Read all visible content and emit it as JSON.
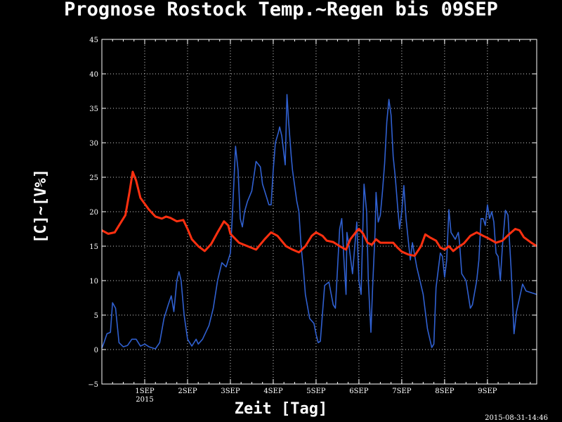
{
  "chart_data": {
    "type": "line",
    "title": "Prognose Rostock Temp.~Regen bis 09SEP",
    "xlabel": "Zeit [Tag]",
    "ylabel": "[C]~[V%]",
    "timestamp": "2015-08-31-14:46",
    "ylim": [
      -5,
      45
    ],
    "yticks": [
      "45",
      "40",
      "35",
      "30",
      "25",
      "20",
      "15",
      "10",
      "5",
      "0",
      "−5"
    ],
    "xlim": [
      0,
      10.15
    ],
    "xticks": [
      {
        "label": "1SEP",
        "sub": "2015",
        "x": 1
      },
      {
        "label": "2SEP",
        "sub": "",
        "x": 2
      },
      {
        "label": "3SEP",
        "sub": "",
        "x": 3
      },
      {
        "label": "4SEP",
        "sub": "",
        "x": 4
      },
      {
        "label": "5SEP",
        "sub": "",
        "x": 5
      },
      {
        "label": "6SEP",
        "sub": "",
        "x": 6
      },
      {
        "label": "7SEP",
        "sub": "",
        "x": 7
      },
      {
        "label": "8SEP",
        "sub": "",
        "x": 8
      },
      {
        "label": "9SEP",
        "sub": "",
        "x": 9
      }
    ],
    "grid": true,
    "series": [
      {
        "color": "#ff3010",
        "points": [
          [
            0,
            17.3
          ],
          [
            0.15,
            16.8
          ],
          [
            0.3,
            17
          ],
          [
            0.45,
            18.5
          ],
          [
            0.55,
            19.5
          ],
          [
            0.65,
            23
          ],
          [
            0.72,
            25.8
          ],
          [
            0.8,
            24.5
          ],
          [
            0.9,
            22
          ],
          [
            1.1,
            20.3
          ],
          [
            1.25,
            19.3
          ],
          [
            1.4,
            19
          ],
          [
            1.5,
            19.3
          ],
          [
            1.6,
            19.1
          ],
          [
            1.75,
            18.6
          ],
          [
            1.9,
            18.8
          ],
          [
            2.0,
            17.5
          ],
          [
            2.1,
            16
          ],
          [
            2.25,
            15
          ],
          [
            2.4,
            14.3
          ],
          [
            2.55,
            15.3
          ],
          [
            2.7,
            17
          ],
          [
            2.85,
            18.6
          ],
          [
            2.95,
            18
          ],
          [
            3.0,
            16.8
          ],
          [
            3.2,
            15.5
          ],
          [
            3.4,
            15
          ],
          [
            3.6,
            14.5
          ],
          [
            3.8,
            16
          ],
          [
            3.95,
            17
          ],
          [
            4.1,
            16.5
          ],
          [
            4.3,
            15
          ],
          [
            4.45,
            14.5
          ],
          [
            4.6,
            14.1
          ],
          [
            4.75,
            15
          ],
          [
            4.9,
            16.5
          ],
          [
            5.0,
            17
          ],
          [
            5.15,
            16.5
          ],
          [
            5.25,
            15.8
          ],
          [
            5.4,
            15.6
          ],
          [
            5.55,
            15
          ],
          [
            5.7,
            14.5
          ],
          [
            5.8,
            16
          ],
          [
            5.95,
            17.2
          ],
          [
            6.0,
            17.5
          ],
          [
            6.1,
            16.8
          ],
          [
            6.2,
            15.5
          ],
          [
            6.3,
            15.2
          ],
          [
            6.4,
            16
          ],
          [
            6.5,
            15.5
          ],
          [
            6.65,
            15.5
          ],
          [
            6.8,
            15.5
          ],
          [
            6.9,
            14.8
          ],
          [
            7.0,
            14.2
          ],
          [
            7.15,
            13.8
          ],
          [
            7.3,
            13.6
          ],
          [
            7.45,
            15
          ],
          [
            7.55,
            16.7
          ],
          [
            7.65,
            16.3
          ],
          [
            7.8,
            15.8
          ],
          [
            7.9,
            14.8
          ],
          [
            8.0,
            14.5
          ],
          [
            8.1,
            15
          ],
          [
            8.2,
            14.3
          ],
          [
            8.3,
            14.8
          ],
          [
            8.45,
            15.4
          ],
          [
            8.6,
            16.5
          ],
          [
            8.75,
            17
          ],
          [
            8.9,
            16.5
          ],
          [
            9.0,
            16.2
          ],
          [
            9.2,
            15.5
          ],
          [
            9.35,
            15.8
          ],
          [
            9.5,
            16.7
          ],
          [
            9.65,
            17.5
          ],
          [
            9.75,
            17.3
          ],
          [
            9.85,
            16.3
          ],
          [
            10.0,
            15.6
          ],
          [
            10.15,
            15
          ]
        ]
      },
      {
        "color": "#3060d0",
        "points": [
          [
            0,
            0.2
          ],
          [
            0.05,
            1
          ],
          [
            0.12,
            2.3
          ],
          [
            0.2,
            2.5
          ],
          [
            0.25,
            6.8
          ],
          [
            0.32,
            6
          ],
          [
            0.4,
            1
          ],
          [
            0.5,
            0.4
          ],
          [
            0.6,
            0.6
          ],
          [
            0.7,
            1.5
          ],
          [
            0.8,
            1.5
          ],
          [
            0.9,
            0.5
          ],
          [
            1.0,
            0.8
          ],
          [
            1.1,
            0.4
          ],
          [
            1.25,
            0.1
          ],
          [
            1.35,
            1
          ],
          [
            1.45,
            4.5
          ],
          [
            1.55,
            6.5
          ],
          [
            1.62,
            7.8
          ],
          [
            1.68,
            5.5
          ],
          [
            1.75,
            10
          ],
          [
            1.8,
            11.3
          ],
          [
            1.85,
            10
          ],
          [
            1.92,
            5
          ],
          [
            2.0,
            1.5
          ],
          [
            2.1,
            0.5
          ],
          [
            2.2,
            1.5
          ],
          [
            2.25,
            0.8
          ],
          [
            2.35,
            1.5
          ],
          [
            2.5,
            3.5
          ],
          [
            2.6,
            6
          ],
          [
            2.7,
            10
          ],
          [
            2.8,
            12.6
          ],
          [
            2.9,
            12
          ],
          [
            3.0,
            14
          ],
          [
            3.05,
            20
          ],
          [
            3.12,
            29.5
          ],
          [
            3.18,
            26
          ],
          [
            3.23,
            19
          ],
          [
            3.28,
            17.8
          ],
          [
            3.33,
            20
          ],
          [
            3.4,
            21.5
          ],
          [
            3.5,
            23
          ],
          [
            3.6,
            27.3
          ],
          [
            3.7,
            26.5
          ],
          [
            3.75,
            24
          ],
          [
            3.85,
            22
          ],
          [
            3.9,
            21
          ],
          [
            3.95,
            21
          ],
          [
            4.0,
            26
          ],
          [
            4.05,
            30
          ],
          [
            4.12,
            31.5
          ],
          [
            4.15,
            32.3
          ],
          [
            4.2,
            31
          ],
          [
            4.28,
            26.8
          ],
          [
            4.32,
            37
          ],
          [
            4.36,
            33
          ],
          [
            4.42,
            28
          ],
          [
            4.45,
            26
          ],
          [
            4.5,
            23.8
          ],
          [
            4.55,
            21.5
          ],
          [
            4.6,
            20
          ],
          [
            4.65,
            15
          ],
          [
            4.7,
            12
          ],
          [
            4.75,
            8
          ],
          [
            4.85,
            4.5
          ],
          [
            4.95,
            3.8
          ],
          [
            5.0,
            2.2
          ],
          [
            5.05,
            1
          ],
          [
            5.1,
            1.2
          ],
          [
            5.2,
            9.3
          ],
          [
            5.3,
            9.8
          ],
          [
            5.4,
            6.5
          ],
          [
            5.45,
            6
          ],
          [
            5.55,
            17.5
          ],
          [
            5.6,
            19
          ],
          [
            5.65,
            13
          ],
          [
            5.7,
            8
          ],
          [
            5.72,
            17
          ],
          [
            5.78,
            14.5
          ],
          [
            5.85,
            11
          ],
          [
            5.95,
            18.5
          ],
          [
            6.0,
            10
          ],
          [
            6.05,
            8
          ],
          [
            6.12,
            24
          ],
          [
            6.18,
            20
          ],
          [
            6.22,
            10
          ],
          [
            6.28,
            2.5
          ],
          [
            6.32,
            9
          ],
          [
            6.38,
            17.5
          ],
          [
            6.4,
            22.8
          ],
          [
            6.45,
            18.5
          ],
          [
            6.5,
            19.5
          ],
          [
            6.55,
            23
          ],
          [
            6.6,
            27
          ],
          [
            6.65,
            33
          ],
          [
            6.7,
            36.3
          ],
          [
            6.75,
            34
          ],
          [
            6.8,
            28
          ],
          [
            6.85,
            25
          ],
          [
            6.9,
            21
          ],
          [
            6.95,
            17.5
          ],
          [
            7.0,
            20
          ],
          [
            7.05,
            23.8
          ],
          [
            7.1,
            19
          ],
          [
            7.15,
            16
          ],
          [
            7.2,
            13
          ],
          [
            7.25,
            15.5
          ],
          [
            7.35,
            12
          ],
          [
            7.5,
            8
          ],
          [
            7.6,
            3
          ],
          [
            7.7,
            0.3
          ],
          [
            7.75,
            0.8
          ],
          [
            7.8,
            9
          ],
          [
            7.9,
            14
          ],
          [
            7.95,
            13.5
          ],
          [
            8.0,
            10.5
          ],
          [
            8.05,
            13
          ],
          [
            8.1,
            20.3
          ],
          [
            8.15,
            17
          ],
          [
            8.25,
            16
          ],
          [
            8.32,
            17
          ],
          [
            8.35,
            15.5
          ],
          [
            8.4,
            11
          ],
          [
            8.5,
            10
          ],
          [
            8.6,
            6
          ],
          [
            8.65,
            6.5
          ],
          [
            8.75,
            10
          ],
          [
            8.8,
            13
          ],
          [
            8.85,
            19
          ],
          [
            8.9,
            19
          ],
          [
            8.95,
            18
          ],
          [
            9.0,
            21
          ],
          [
            9.05,
            19
          ],
          [
            9.1,
            20
          ],
          [
            9.15,
            18.5
          ],
          [
            9.2,
            14
          ],
          [
            9.25,
            13.5
          ],
          [
            9.3,
            10
          ],
          [
            9.35,
            15
          ],
          [
            9.42,
            20.2
          ],
          [
            9.48,
            19.5
          ],
          [
            9.55,
            12
          ],
          [
            9.62,
            2.3
          ],
          [
            9.68,
            5.5
          ],
          [
            9.75,
            7.5
          ],
          [
            9.82,
            9.5
          ],
          [
            9.9,
            8.5
          ],
          [
            10.15,
            8
          ]
        ]
      }
    ]
  }
}
